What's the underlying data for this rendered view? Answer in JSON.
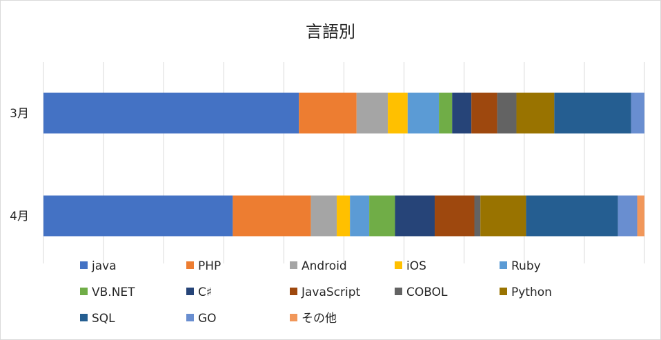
{
  "chart_data": {
    "type": "bar",
    "orientation": "horizontal",
    "stacked": "100%",
    "title": "言語別",
    "categories": [
      "3月",
      "4月"
    ],
    "series": [
      {
        "name": "java",
        "color": "#4472c4",
        "values": [
          42.5,
          31.5
        ]
      },
      {
        "name": "PHP",
        "color": "#ed7d31",
        "values": [
          9.6,
          13.0
        ]
      },
      {
        "name": "Android",
        "color": "#a5a5a5",
        "values": [
          5.2,
          4.3
        ]
      },
      {
        "name": "iOS",
        "color": "#ffc000",
        "values": [
          3.3,
          2.2
        ]
      },
      {
        "name": "Ruby",
        "color": "#5b9bd5",
        "values": [
          5.2,
          3.2
        ]
      },
      {
        "name": "VB.NET",
        "color": "#70ad47",
        "values": [
          2.2,
          4.3
        ]
      },
      {
        "name": "C♯",
        "color": "#264478",
        "values": [
          3.2,
          6.6
        ]
      },
      {
        "name": "JavaScript",
        "color": "#9e480e",
        "values": [
          4.3,
          6.6
        ]
      },
      {
        "name": "COBOL",
        "color": "#636363",
        "values": [
          3.2,
          1.0
        ]
      },
      {
        "name": "Python",
        "color": "#997300",
        "values": [
          6.3,
          7.6
        ]
      },
      {
        "name": "SQL",
        "color": "#255e91",
        "values": [
          12.8,
          15.3
        ]
      },
      {
        "name": "GO",
        "color": "#698ed0",
        "values": [
          2.2,
          3.2
        ]
      },
      {
        "name": "その他",
        "color": "#f1975a",
        "values": [
          0.0,
          1.2
        ]
      }
    ],
    "xlim": [
      0,
      100
    ],
    "grid": true,
    "legend_position": "bottom"
  }
}
